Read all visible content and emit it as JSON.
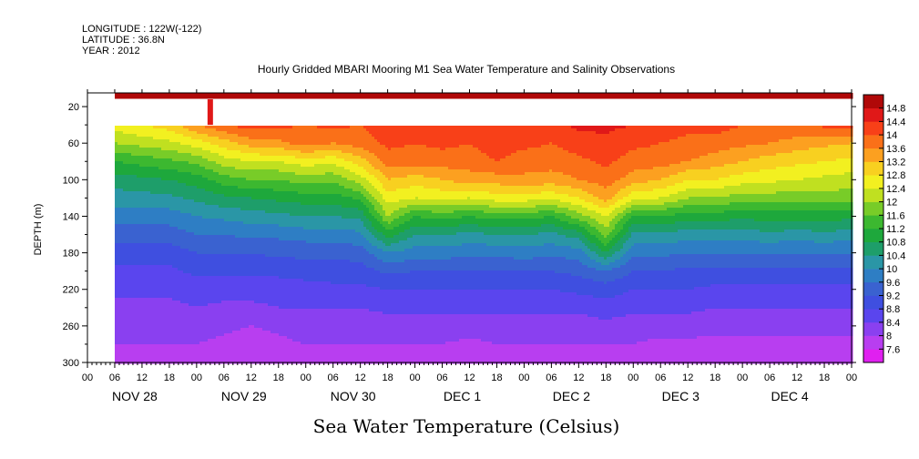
{
  "header": {
    "longitude": "LONGITUDE : 122W(-122)",
    "latitude": "LATITUDE : 36.8N",
    "year": "YEAR : 2012"
  },
  "chart_data": {
    "type": "heatmap",
    "title": "Hourly Gridded MBARI Mooring M1 Sea Water Temperature and Salinity Observations",
    "xlabel": "Sea Water Temperature (Celsius)",
    "ylabel": "DEPTH (m)",
    "y_axis": {
      "min": 5,
      "max": 300,
      "inverted": true,
      "ticks": [
        20,
        60,
        100,
        140,
        180,
        220,
        260,
        300
      ]
    },
    "x_axis": {
      "start": "2012-11-28 00:00",
      "end": "2012-12-05 00:00",
      "hour_tick_labels": [
        "00",
        "06",
        "12",
        "18",
        "00",
        "06",
        "12",
        "18",
        "00",
        "06",
        "12",
        "18",
        "00",
        "06",
        "12",
        "18",
        "00",
        "06",
        "12",
        "18",
        "00",
        "06",
        "12",
        "18",
        "00",
        "06",
        "12",
        "18",
        "00"
      ],
      "day_labels": [
        "NOV 28",
        "NOV 29",
        "NOV 30",
        "DEC  1",
        "DEC  2",
        "DEC  3",
        "DEC  4"
      ]
    },
    "data_start": "2012-11-28 06:00",
    "no_data_depth_band": [
      12,
      40
    ],
    "colorbar": {
      "levels": [
        7.6,
        8,
        8.4,
        8.8,
        9.2,
        9.6,
        10,
        10.4,
        10.8,
        11.2,
        11.6,
        12,
        12.4,
        12.8,
        13.2,
        13.6,
        14,
        14.4,
        14.8
      ],
      "labels": [
        "7.6",
        "8",
        "8.4",
        "8.8",
        "9.2",
        "9.6",
        "10",
        "10.4",
        "10.8",
        "11.2",
        "11.6",
        "12",
        "12.4",
        "12.8",
        "13.2",
        "13.6",
        "14",
        "14.4",
        "14.8"
      ],
      "colors": [
        "#e020f0",
        "#b83ef0",
        "#8a40f0",
        "#5a45ee",
        "#3f4fe0",
        "#3a62d0",
        "#2e7ec4",
        "#2a96a6",
        "#1e9e6a",
        "#1ea83c",
        "#3cb830",
        "#78cc28",
        "#c0e020",
        "#f2f020",
        "#f8d020",
        "#fca020",
        "#fa7018",
        "#f84018",
        "#e01818",
        "#b00808"
      ]
    },
    "profile_depths": [
      40,
      60,
      80,
      100,
      120,
      140,
      160,
      180,
      200,
      220,
      240,
      260,
      280,
      300
    ],
    "profiles": [
      {
        "time": "2012-11-28 06:00",
        "temps": [
          12.6,
          12.0,
          11.2,
          10.6,
          10.2,
          9.8,
          9.4,
          9.0,
          8.7,
          8.5,
          8.3,
          8.1,
          8.0,
          7.9
        ]
      },
      {
        "time": "2012-11-28 18:00",
        "temps": [
          13.0,
          12.3,
          11.5,
          10.8,
          10.3,
          9.8,
          9.4,
          9.0,
          8.7,
          8.5,
          8.3,
          8.1,
          8.0,
          7.8
        ]
      },
      {
        "time": "2012-11-29 00:00",
        "temps": [
          13.6,
          12.6,
          11.7,
          11.0,
          10.5,
          10.0,
          9.6,
          9.2,
          8.9,
          8.6,
          8.4,
          8.2,
          8.0,
          7.8
        ]
      },
      {
        "time": "2012-11-29 06:00",
        "temps": [
          14.0,
          13.0,
          12.2,
          11.4,
          10.7,
          10.1,
          9.6,
          9.2,
          8.9,
          8.6,
          8.3,
          8.1,
          7.9,
          7.7
        ]
      },
      {
        "time": "2012-11-29 12:00",
        "temps": [
          14.2,
          13.4,
          12.4,
          11.6,
          10.8,
          10.2,
          9.7,
          9.2,
          8.9,
          8.6,
          8.3,
          8.0,
          7.8,
          7.7
        ]
      },
      {
        "time": "2012-11-29 18:00",
        "temps": [
          14.1,
          13.5,
          12.4,
          11.6,
          10.9,
          10.3,
          9.7,
          9.3,
          8.9,
          8.6,
          8.4,
          8.1,
          7.9,
          7.7
        ]
      },
      {
        "time": "2012-11-30 00:00",
        "temps": [
          14.0,
          13.8,
          12.6,
          11.8,
          11.0,
          10.4,
          9.8,
          9.3,
          9.0,
          8.6,
          8.4,
          8.2,
          8.0,
          7.8
        ]
      },
      {
        "time": "2012-11-30 06:00",
        "temps": [
          14.1,
          13.6,
          12.5,
          11.7,
          11.0,
          10.4,
          9.8,
          9.3,
          9.0,
          8.7,
          8.4,
          8.2,
          8.0,
          7.8
        ]
      },
      {
        "time": "2012-11-30 12:00",
        "temps": [
          14.0,
          13.8,
          13.0,
          12.2,
          11.3,
          10.5,
          9.9,
          9.4,
          9.0,
          8.7,
          8.4,
          8.2,
          8.0,
          7.8
        ]
      },
      {
        "time": "2012-11-30 18:00",
        "temps": [
          14.3,
          14.1,
          13.8,
          13.2,
          12.6,
          12.0,
          11.0,
          10.0,
          9.3,
          8.8,
          8.5,
          8.2,
          8.0,
          7.8
        ]
      },
      {
        "time": "2012-12-01 00:00",
        "temps": [
          14.2,
          14.0,
          13.8,
          13.0,
          12.4,
          11.2,
          10.4,
          9.8,
          9.2,
          8.8,
          8.5,
          8.2,
          8.0,
          7.8
        ]
      },
      {
        "time": "2012-12-01 06:00",
        "temps": [
          14.4,
          14.1,
          13.8,
          13.2,
          12.5,
          11.4,
          10.4,
          9.8,
          9.2,
          8.8,
          8.5,
          8.2,
          8.0,
          7.8
        ]
      },
      {
        "time": "2012-12-01 12:00",
        "temps": [
          14.3,
          14.0,
          13.8,
          13.4,
          12.4,
          11.2,
          10.3,
          9.7,
          9.2,
          8.8,
          8.5,
          8.2,
          7.9,
          7.7
        ]
      },
      {
        "time": "2012-12-01 18:00",
        "temps": [
          14.4,
          14.2,
          14.0,
          13.4,
          12.6,
          11.4,
          10.4,
          9.7,
          9.2,
          8.8,
          8.5,
          8.2,
          8.0,
          7.8
        ]
      },
      {
        "time": "2012-12-02 00:00",
        "temps": [
          14.4,
          14.1,
          13.8,
          13.5,
          12.6,
          11.4,
          10.4,
          9.8,
          9.2,
          8.8,
          8.5,
          8.2,
          8.0,
          7.8
        ]
      },
      {
        "time": "2012-12-02 06:00",
        "temps": [
          14.3,
          14.0,
          13.8,
          13.4,
          12.5,
          11.2,
          10.3,
          9.7,
          9.2,
          8.8,
          8.5,
          8.2,
          8.0,
          7.8
        ]
      },
      {
        "time": "2012-12-02 12:00",
        "temps": [
          14.5,
          14.2,
          13.9,
          13.6,
          12.8,
          11.8,
          10.6,
          9.8,
          9.3,
          8.9,
          8.5,
          8.2,
          8.0,
          7.8
        ]
      },
      {
        "time": "2012-12-02 18:00",
        "temps": [
          14.5,
          14.3,
          14.1,
          13.8,
          13.4,
          12.4,
          11.8,
          10.8,
          9.6,
          9.0,
          8.6,
          8.3,
          8.0,
          7.8
        ]
      },
      {
        "time": "2012-12-03 00:00",
        "temps": [
          14.4,
          14.1,
          13.8,
          13.4,
          12.5,
          11.2,
          10.3,
          9.7,
          9.2,
          8.8,
          8.5,
          8.2,
          8.0,
          7.8
        ]
      },
      {
        "time": "2012-12-03 06:00",
        "temps": [
          14.3,
          14.0,
          13.8,
          13.2,
          12.4,
          11.2,
          10.3,
          9.7,
          9.2,
          8.8,
          8.5,
          8.2,
          7.9,
          7.8
        ]
      },
      {
        "time": "2012-12-03 12:00",
        "temps": [
          14.1,
          13.9,
          13.6,
          12.8,
          12.0,
          11.0,
          10.2,
          9.6,
          9.1,
          8.8,
          8.5,
          8.2,
          7.9,
          7.7
        ]
      },
      {
        "time": "2012-12-03 18:00",
        "temps": [
          14.2,
          13.8,
          13.4,
          12.8,
          12.0,
          11.0,
          10.2,
          9.6,
          9.1,
          8.7,
          8.4,
          8.1,
          7.9,
          7.7
        ]
      },
      {
        "time": "2012-12-04 00:00",
        "temps": [
          14.0,
          13.7,
          13.2,
          12.6,
          11.8,
          10.9,
          10.2,
          9.6,
          9.1,
          8.7,
          8.4,
          8.1,
          7.9,
          7.7
        ]
      },
      {
        "time": "2012-12-04 06:00",
        "temps": [
          14.0,
          13.6,
          13.0,
          12.5,
          11.8,
          11.0,
          10.3,
          9.6,
          9.1,
          8.7,
          8.4,
          8.1,
          7.9,
          7.7
        ]
      },
      {
        "time": "2012-12-04 12:00",
        "temps": [
          14.0,
          13.4,
          12.9,
          12.4,
          11.8,
          11.0,
          10.2,
          9.6,
          9.1,
          8.7,
          8.4,
          8.1,
          7.9,
          7.7
        ]
      },
      {
        "time": "2012-12-04 18:00",
        "temps": [
          14.1,
          13.3,
          12.8,
          12.3,
          11.8,
          11.0,
          10.3,
          9.6,
          9.1,
          8.7,
          8.4,
          8.1,
          7.9,
          7.7
        ]
      },
      {
        "time": "2012-12-05 00:00",
        "temps": [
          14.2,
          13.2,
          12.7,
          12.2,
          11.8,
          10.9,
          10.2,
          9.6,
          9.1,
          8.7,
          8.4,
          8.1,
          7.9,
          7.7
        ]
      }
    ],
    "surface_temp": 14.8
  }
}
